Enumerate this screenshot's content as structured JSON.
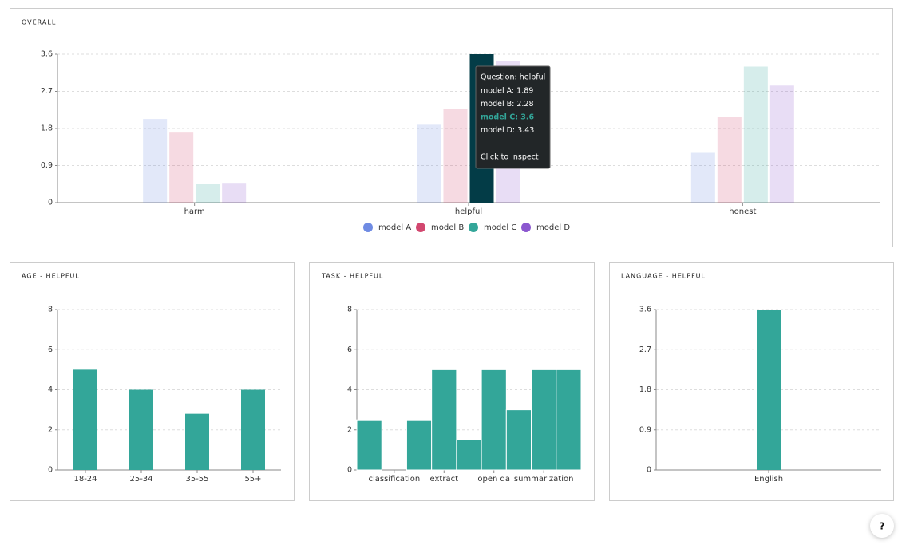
{
  "chart_data": [
    {
      "type": "bar",
      "title": "OVERALL",
      "categories": [
        "harm",
        "helpful",
        "honest"
      ],
      "series": [
        {
          "name": "model A",
          "color": "#6f8be3",
          "values": [
            2.03,
            1.89,
            1.21
          ]
        },
        {
          "name": "model B",
          "color": "#d2476f",
          "values": [
            1.7,
            2.28,
            2.09
          ]
        },
        {
          "name": "model C",
          "color": "#33a699",
          "values": [
            0.46,
            3.6,
            3.3
          ]
        },
        {
          "name": "model D",
          "color": "#8b57cf",
          "values": [
            0.48,
            3.43,
            2.84
          ]
        }
      ],
      "ylim": [
        0,
        3.6
      ],
      "yticks": [
        0,
        0.9,
        1.8,
        2.7,
        3.6
      ],
      "grid": true,
      "legend": "bottom",
      "active": {
        "series": 2,
        "category": 1,
        "color": "#033c47"
      },
      "tooltip": {
        "title": "Question: helpful",
        "lines": [
          "model A: 1.89",
          "model B: 2.28",
          "model C: 3.6",
          "model D: 3.43"
        ],
        "footer": "Click to inspect"
      }
    },
    {
      "type": "bar",
      "title": "AGE - HELPFUL",
      "categories": [
        "18-24",
        "25-34",
        "35-55",
        "55+"
      ],
      "values": [
        5,
        4,
        2.8,
        4
      ],
      "color": "#33a699",
      "ylim": [
        0,
        8
      ],
      "yticks": [
        0,
        2,
        4,
        6,
        8
      ],
      "grid": true
    },
    {
      "type": "bar",
      "title": "TASK - HELPFUL",
      "categories": [
        null,
        "classification",
        null,
        "extract",
        null,
        "open qa",
        null,
        "summarization",
        null
      ],
      "values": [
        2.5,
        0,
        2.5,
        5,
        1.5,
        5,
        3,
        5,
        5
      ],
      "color": "#33a699",
      "ylim": [
        0,
        8
      ],
      "yticks": [
        0,
        2,
        4,
        6,
        8
      ],
      "grid": true
    },
    {
      "type": "bar",
      "title": "LANGUAGE - HELPFUL",
      "categories": [
        "English"
      ],
      "values": [
        3.6
      ],
      "color": "#33a699",
      "ylim": [
        0,
        3.6
      ],
      "yticks": [
        0,
        0.9,
        1.8,
        2.7,
        3.6
      ],
      "grid": true
    }
  ],
  "help_button": "?"
}
